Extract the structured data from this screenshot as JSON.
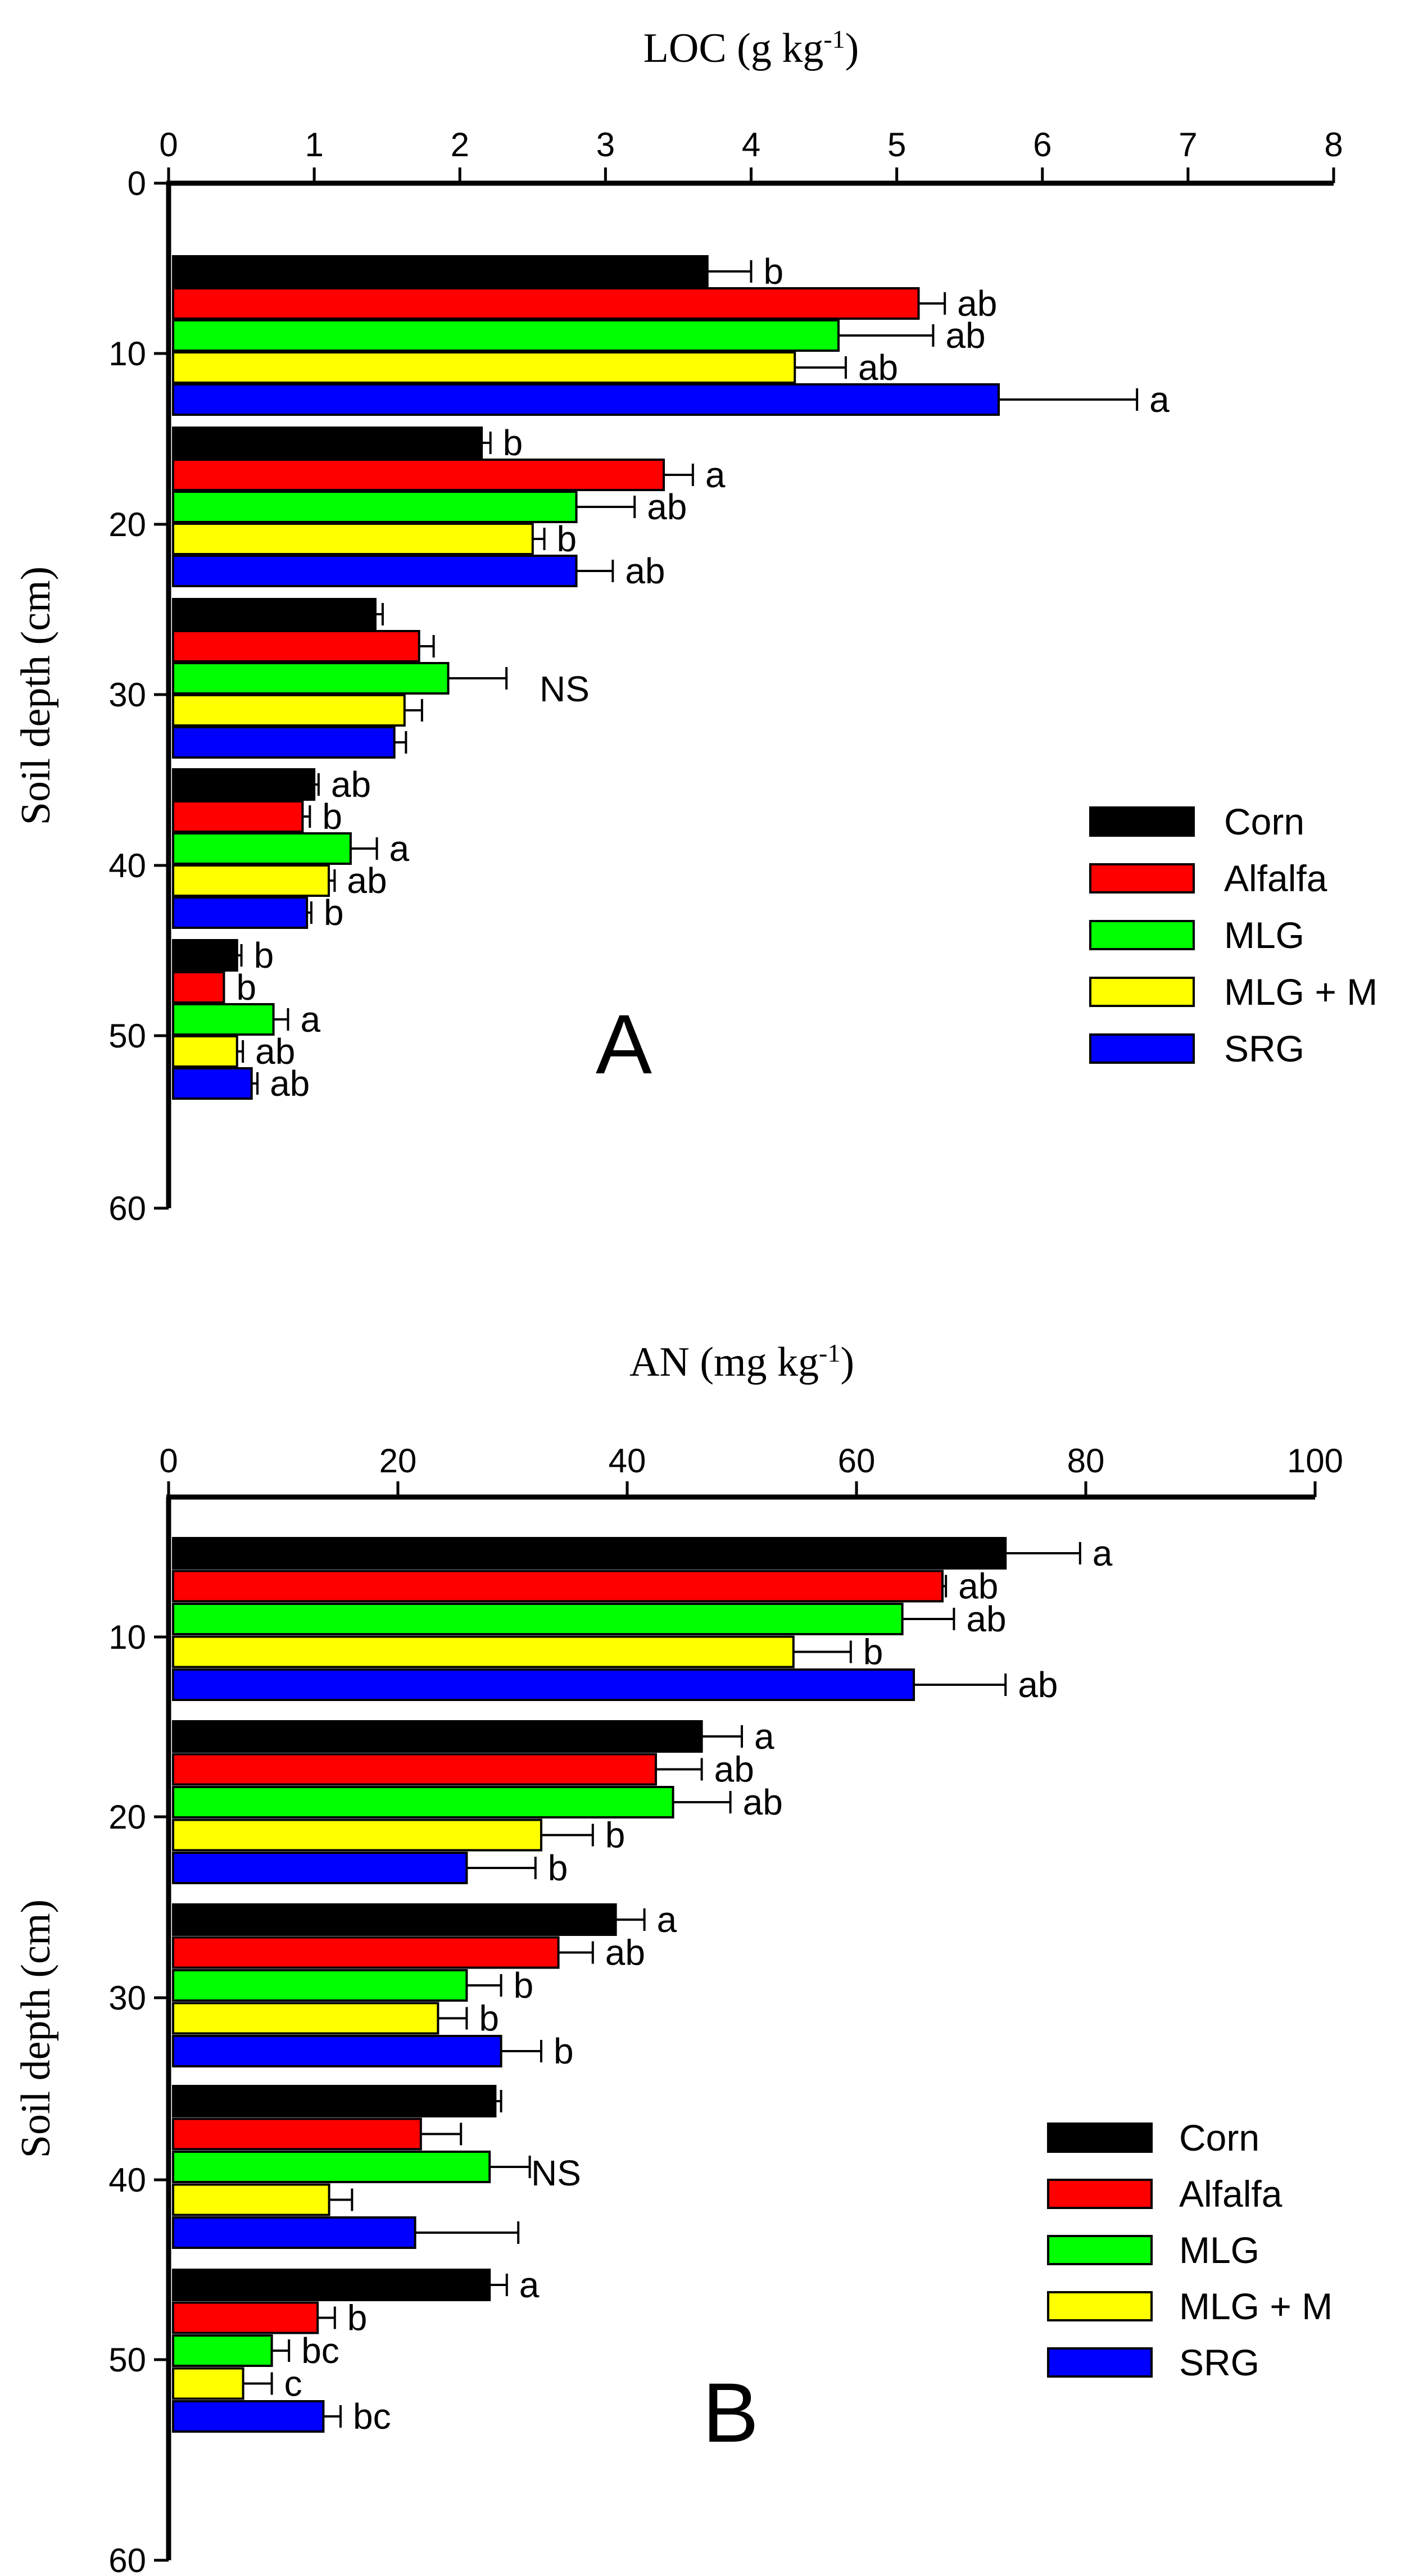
{
  "colors": {
    "Corn": "#000000",
    "Alfalfa": "#ff0000",
    "MLG": "#00ff00",
    "MLG + M": "#ffff00",
    "SRG": "#0000ff"
  },
  "chart_data": [
    {
      "type": "bar",
      "orientation": "horizontal",
      "panel_label": "A",
      "title": "",
      "xlabel_main": "LOC (g kg",
      "xlabel_sup": "-1",
      "xlabel_close": ")",
      "ylabel": "Soil depth (cm)",
      "xlim": [
        0,
        8
      ],
      "ylim": [
        0,
        60
      ],
      "x_ticks": [
        "0",
        "1",
        "2",
        "3",
        "4",
        "5",
        "6",
        "7",
        "8"
      ],
      "y_ticks": [
        "0",
        "10",
        "20",
        "30",
        "40",
        "50",
        "60"
      ],
      "treatments": [
        "Corn",
        "Alfalfa",
        "MLG",
        "MLG + M",
        "SRG"
      ],
      "legend_position": "right-middle",
      "groups": [
        {
          "depth_range": "0-10",
          "values": [
            3.7,
            5.15,
            4.6,
            4.3,
            5.7
          ],
          "errors": [
            0.3,
            0.18,
            0.65,
            0.35,
            0.95
          ],
          "letters": [
            "b",
            "ab",
            "ab",
            "ab",
            "a"
          ],
          "group_note": ""
        },
        {
          "depth_range": "10-20",
          "values": [
            2.15,
            3.4,
            2.8,
            2.5,
            2.8
          ],
          "errors": [
            0.06,
            0.2,
            0.4,
            0.08,
            0.25
          ],
          "letters": [
            "b",
            "a",
            "ab",
            "b",
            "ab"
          ],
          "group_note": ""
        },
        {
          "depth_range": "20-30",
          "values": [
            1.42,
            1.72,
            1.92,
            1.62,
            1.55
          ],
          "errors": [
            0.05,
            0.1,
            0.4,
            0.12,
            0.08
          ],
          "letters": [
            "",
            "",
            "",
            "",
            ""
          ],
          "group_note": "NS"
        },
        {
          "depth_range": "30-40",
          "values": [
            1.0,
            0.92,
            1.25,
            1.1,
            0.95
          ],
          "errors": [
            0.03,
            0.05,
            0.18,
            0.04,
            0.03
          ],
          "letters": [
            "ab",
            "b",
            "a",
            "ab",
            "b"
          ],
          "group_note": ""
        },
        {
          "depth_range": "40-50",
          "values": [
            0.47,
            0.38,
            0.72,
            0.47,
            0.57
          ],
          "errors": [
            0.03,
            0.0,
            0.1,
            0.04,
            0.04
          ],
          "letters": [
            "b",
            "b",
            "a",
            "ab",
            "ab"
          ],
          "group_note": ""
        }
      ]
    },
    {
      "type": "bar",
      "orientation": "horizontal",
      "panel_label": "B",
      "title": "",
      "xlabel_main": "AN (mg kg",
      "xlabel_sup": "-1",
      "xlabel_close": ")",
      "ylabel": "Soil depth (cm)",
      "xlim": [
        0,
        100
      ],
      "ylim": [
        0,
        60
      ],
      "x_ticks": [
        "0",
        "20",
        "40",
        "60",
        "80",
        "100"
      ],
      "y_ticks": [
        "10",
        "20",
        "30",
        "40",
        "50",
        "60"
      ],
      "treatments": [
        "Corn",
        "Alfalfa",
        "MLG",
        "MLG + M",
        "SRG"
      ],
      "legend_position": "right-bottom",
      "groups": [
        {
          "depth_range": "0-10",
          "values": [
            73,
            67.5,
            64,
            54.5,
            65
          ],
          "errors": [
            6.5,
            0.3,
            4.5,
            5,
            8
          ],
          "letters": [
            "a",
            "ab",
            "ab",
            "b",
            "ab"
          ],
          "group_note": ""
        },
        {
          "depth_range": "10-20",
          "values": [
            46.5,
            42.5,
            44,
            32.5,
            26
          ],
          "errors": [
            3.5,
            4,
            5,
            4.5,
            6
          ],
          "letters": [
            "a",
            "ab",
            "ab",
            "b",
            "b"
          ],
          "group_note": ""
        },
        {
          "depth_range": "20-30",
          "values": [
            39,
            34,
            26,
            23.5,
            29
          ],
          "errors": [
            2.5,
            3,
            3,
            2.5,
            3.5
          ],
          "letters": [
            "a",
            "ab",
            "b",
            "b",
            "b"
          ],
          "group_note": ""
        },
        {
          "depth_range": "30-40",
          "values": [
            28.5,
            22,
            28,
            14,
            21.5
          ],
          "errors": [
            0.5,
            3.5,
            3.5,
            2,
            9
          ],
          "letters": [
            "",
            "",
            "",
            "",
            ""
          ],
          "group_note": "NS"
        },
        {
          "depth_range": "40-50",
          "values": [
            28,
            13,
            9,
            6.5,
            13.5
          ],
          "errors": [
            1.5,
            1.5,
            1.5,
            2.5,
            1.5
          ],
          "letters": [
            "a",
            "b",
            "bc",
            "c",
            "bc"
          ],
          "group_note": ""
        }
      ]
    }
  ]
}
